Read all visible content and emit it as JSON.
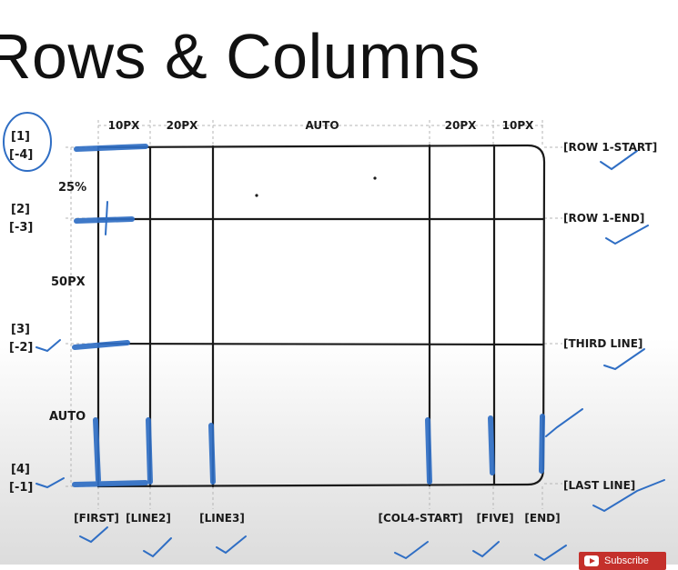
{
  "title": "Rows & Columns",
  "columns": {
    "sizes": [
      "10PX",
      "20PX",
      "AUTO",
      "20PX",
      "10PX"
    ],
    "line_names": [
      "[FIRST]",
      "[LINE2]",
      "[LINE3]",
      "[COL4-START]",
      "[FIVE]",
      "[END]"
    ]
  },
  "rows": {
    "sizes": [
      "25%",
      "50PX",
      "AUTO"
    ],
    "line_names": [
      "[ROW 1-START]",
      "[ROW 1-END]",
      "[THIRD LINE]",
      "[LAST LINE]"
    ],
    "line_numbers": [
      {
        "pos": "[1]",
        "neg": "[-4]"
      },
      {
        "pos": "[2]",
        "neg": "[-3]"
      },
      {
        "pos": "[3]",
        "neg": "[-2]"
      },
      {
        "pos": "[4]",
        "neg": "[-1]"
      }
    ]
  },
  "subscribe_label": "Subscribe",
  "colors": {
    "ink": "#1a1a1a",
    "marker": "#2f6ec4",
    "guide": "#b5b5b5",
    "subscribe": "#c4302b"
  }
}
